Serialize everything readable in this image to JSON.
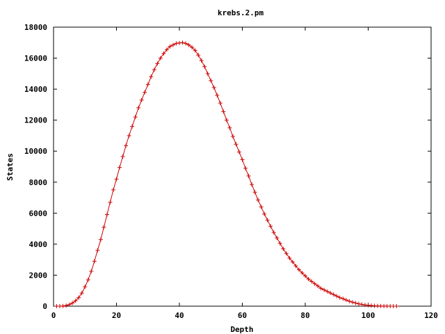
{
  "chart_data": {
    "type": "line",
    "title": "krebs.2.pm",
    "xlabel": "Depth",
    "ylabel": "States",
    "xlim": [
      0,
      120
    ],
    "ylim": [
      0,
      18000
    ],
    "xticks": [
      0,
      20,
      40,
      60,
      80,
      100,
      120
    ],
    "yticks": [
      0,
      2000,
      4000,
      6000,
      8000,
      10000,
      12000,
      14000,
      16000,
      18000
    ],
    "xtick_labels": [
      "0",
      "20",
      "40",
      "60",
      "80",
      "100",
      "120"
    ],
    "ytick_labels": [
      "0",
      "2000",
      "4000",
      "6000",
      "8000",
      "10000",
      "12000",
      "14000",
      "16000",
      "18000"
    ],
    "grid": false,
    "legend": "none",
    "series": [
      {
        "color": "#cc0000",
        "marker": "plus",
        "x": [
          1,
          2,
          3,
          4,
          5,
          6,
          7,
          8,
          9,
          10,
          11,
          12,
          13,
          14,
          15,
          16,
          17,
          18,
          19,
          20,
          21,
          22,
          23,
          24,
          25,
          26,
          27,
          28,
          29,
          30,
          31,
          32,
          33,
          34,
          35,
          36,
          37,
          38,
          39,
          40,
          41,
          42,
          43,
          44,
          45,
          46,
          47,
          48,
          49,
          50,
          51,
          52,
          53,
          54,
          55,
          56,
          57,
          58,
          59,
          60,
          61,
          62,
          63,
          64,
          65,
          66,
          67,
          68,
          69,
          70,
          71,
          72,
          73,
          74,
          75,
          76,
          77,
          78,
          79,
          80,
          81,
          82,
          83,
          84,
          85,
          86,
          87,
          88,
          89,
          90,
          91,
          92,
          93,
          94,
          95,
          96,
          97,
          98,
          99,
          100,
          101,
          102,
          103,
          104,
          105,
          106,
          107,
          108,
          109
        ],
        "y": [
          0,
          0,
          10,
          40,
          100,
          200,
          350,
          550,
          850,
          1250,
          1700,
          2250,
          2900,
          3600,
          4300,
          5100,
          5900,
          6700,
          7500,
          8200,
          8950,
          9650,
          10350,
          11000,
          11600,
          12200,
          12800,
          13300,
          13800,
          14300,
          14800,
          15250,
          15650,
          16000,
          16300,
          16550,
          16750,
          16850,
          16950,
          16980,
          17000,
          16950,
          16850,
          16700,
          16500,
          16200,
          15850,
          15450,
          15000,
          14550,
          14100,
          13600,
          13100,
          12550,
          12000,
          11500,
          10950,
          10450,
          9950,
          9450,
          8900,
          8400,
          7850,
          7350,
          6850,
          6400,
          5950,
          5550,
          5150,
          4750,
          4400,
          4050,
          3700,
          3400,
          3100,
          2850,
          2600,
          2350,
          2150,
          1950,
          1750,
          1600,
          1450,
          1300,
          1150,
          1050,
          950,
          850,
          750,
          650,
          550,
          480,
          400,
          320,
          260,
          200,
          150,
          110,
          80,
          60,
          40,
          25,
          15,
          8,
          5,
          3,
          2,
          1,
          0
        ]
      }
    ]
  }
}
